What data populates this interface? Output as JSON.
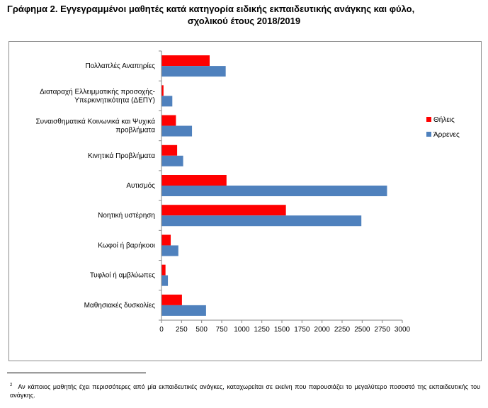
{
  "title_line1": "Γράφημα 2. Εγγεγραμμένοι μαθητές κατά κατηγορία ειδικής εκπαιδευτικής ανάγκης και φύλο,",
  "title_line2": "σχολικού έτους 2018/2019",
  "footnote": {
    "marker": "2",
    "text": "Αν κάποιος μαθητής έχει περισσότερες από μία εκπαιδευτικές ανάγκες, καταχωρείται σε εκείνη που παρουσιάζει το μεγαλύτερο ποσοστό της εκπαιδευτικής του ανάγκης."
  },
  "chart_data": {
    "type": "bar",
    "orientation": "horizontal",
    "categories": [
      [
        "Πολλαπλές Αναπηρίες"
      ],
      [
        "Διαταραχή Ελλειμματικής προσοχής-",
        "Υπερκινητικότητα (ΔΕΠΥ)"
      ],
      [
        "Συναισθηματικά Κοινωνικά και Ψυχικά",
        "προβλήματα"
      ],
      [
        "Κινητικά Προβλήματα"
      ],
      [
        "Αυτισμός"
      ],
      [
        "Νοητική υστέρηση"
      ],
      [
        "Κωφοί ή βαρήκοοι"
      ],
      [
        "Τυφλοί ή αμβλύωπες"
      ],
      [
        "Μαθησιακές δυσκολίες"
      ]
    ],
    "series": [
      {
        "name": "Θήλεις",
        "color": "#ff0000",
        "values": [
          600,
          25,
          180,
          195,
          810,
          1550,
          115,
          50,
          255
        ]
      },
      {
        "name": "Άρρενες",
        "color": "#4f81bd",
        "values": [
          800,
          135,
          380,
          270,
          2810,
          2490,
          210,
          80,
          555
        ]
      }
    ],
    "xlim": [
      0,
      3000
    ],
    "xticks": [
      0,
      250,
      500,
      750,
      1000,
      1250,
      1500,
      1750,
      2000,
      2250,
      2500,
      2750,
      3000
    ],
    "legend_position": "right",
    "grid": false
  }
}
